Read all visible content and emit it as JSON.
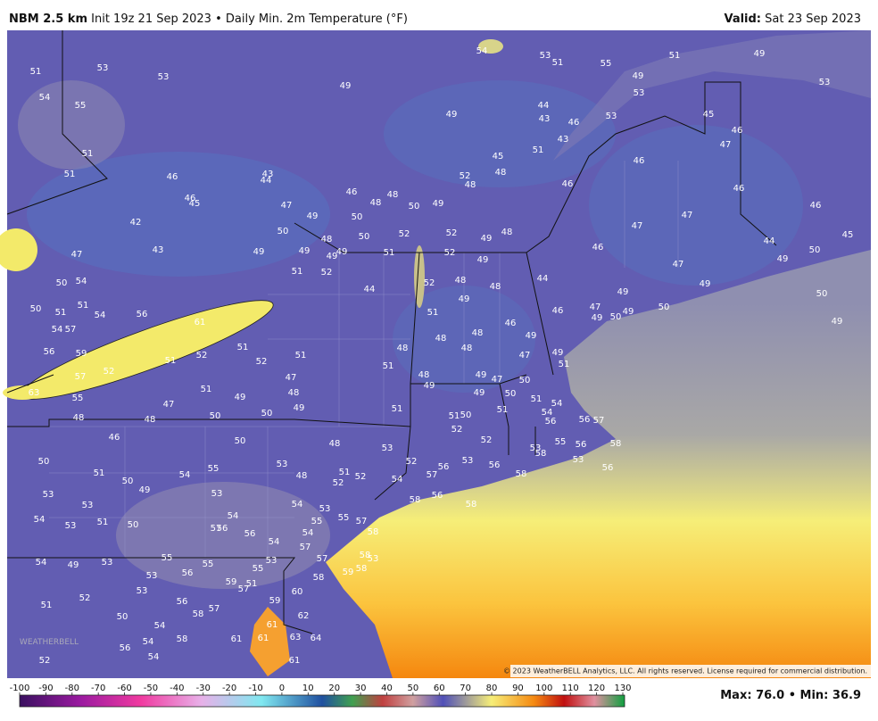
{
  "header": {
    "model": "NBM 2.5 km",
    "init": "Init 19z 21 Sep 2023",
    "separator": "•",
    "product": "Daily Min. 2m Temperature (°F)",
    "valid_label": "Valid:",
    "valid_date": "Sat 23 Sep 2023"
  },
  "map": {
    "station_values": [
      51,
      53,
      53,
      54,
      55,
      51,
      51,
      46,
      46,
      45,
      43,
      44,
      42,
      43,
      47,
      50,
      54,
      50,
      51,
      51,
      54,
      56,
      61,
      54,
      57,
      56,
      59,
      57,
      52,
      51,
      52,
      51,
      52,
      63,
      55,
      48,
      48,
      47,
      51,
      50,
      49,
      50,
      46,
      50,
      50,
      51,
      50,
      49,
      54,
      55,
      53,
      53,
      48,
      48,
      49,
      48,
      47,
      51,
      47,
      49,
      50,
      49,
      49,
      48,
      49,
      49,
      51,
      52,
      44,
      49,
      49,
      46,
      48,
      48,
      50,
      49,
      50,
      50,
      51,
      52,
      52,
      52,
      49,
      48,
      49,
      52,
      48,
      48,
      49,
      51,
      48,
      48,
      48,
      46,
      49,
      47,
      44,
      46,
      49,
      51,
      51,
      48,
      51,
      48,
      49,
      49,
      47,
      50,
      49,
      50,
      51,
      51,
      51,
      50,
      52,
      52,
      53,
      52,
      51,
      52,
      52,
      54,
      57,
      56,
      53,
      56,
      58,
      44,
      43,
      46,
      53,
      43,
      51,
      45,
      48,
      52,
      48,
      46,
      46,
      53,
      49,
      55,
      51,
      53,
      54,
      51,
      49,
      53,
      45,
      46,
      47,
      46,
      46,
      45,
      47,
      47,
      46,
      44,
      49,
      50,
      47,
      49,
      49,
      47,
      49,
      50,
      49,
      50,
      50,
      49,
      53,
      54,
      53,
      53,
      51,
      50,
      57,
      56,
      54,
      56,
      54,
      54,
      54,
      55,
      53,
      55,
      57,
      58,
      57,
      57,
      58,
      53,
      54,
      49,
      53,
      55,
      55,
      56,
      53,
      53,
      55,
      53,
      59,
      58,
      58,
      59,
      57,
      51,
      51,
      52,
      50,
      54,
      56,
      58,
      57,
      59,
      60,
      62,
      61,
      61,
      61,
      63,
      64,
      61,
      52,
      56,
      54,
      54,
      58,
      56,
      56,
      57,
      54,
      54,
      55,
      53,
      58,
      56,
      58,
      53,
      56,
      58,
      58,
      56
    ],
    "copyright": "© 2023 WeatherBELL Analytics, LLC. All rights reserved. License required for commercial distribution.",
    "watermark": "WEATHERBELL"
  },
  "colorbar": {
    "ticks": [
      -100,
      -90,
      -80,
      -70,
      -60,
      -50,
      -40,
      -30,
      -20,
      -10,
      0,
      10,
      20,
      30,
      40,
      50,
      60,
      70,
      80,
      90,
      100,
      110,
      120,
      130
    ]
  },
  "stats": {
    "max_label": "Max:",
    "max": "76.0",
    "min_label": "Min:",
    "min": "36.9"
  }
}
